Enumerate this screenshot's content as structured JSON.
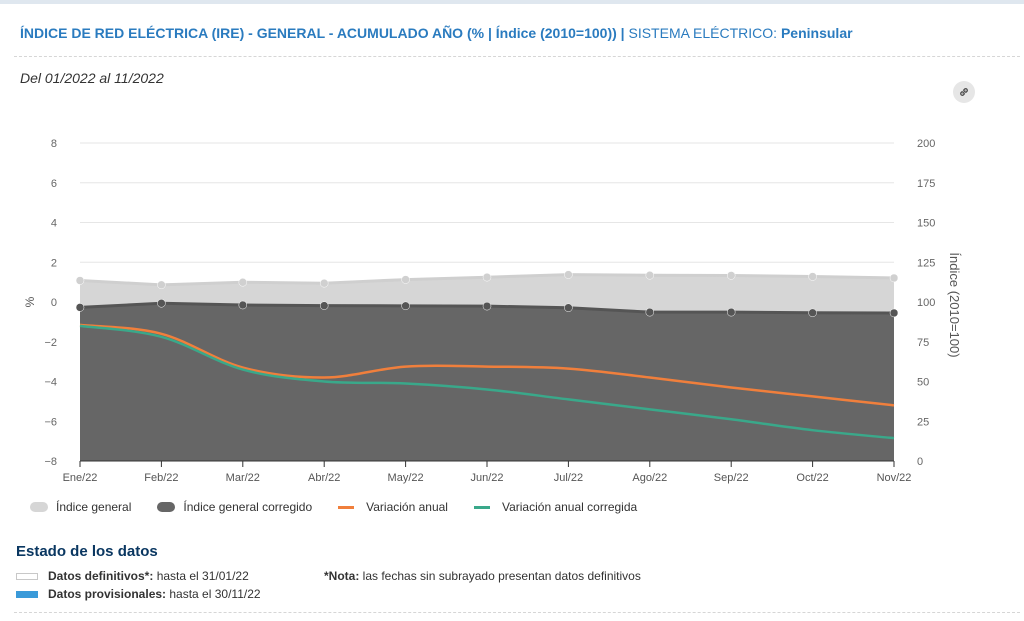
{
  "header": {
    "title": "ÍNDICE DE RED ELÉCTRICA (IRE) - GENERAL - ACUMULADO AÑO (% | Índice (2010=100))",
    "separator": " | ",
    "system_label": "SISTEMA ELÉCTRICO: ",
    "system_value": "Peninsular",
    "date_range": "Del 01/2022 al 11/2022",
    "link_icon": "link-icon"
  },
  "chart_data": {
    "type": "area",
    "categories": [
      "Ene/22",
      "Feb/22",
      "Mar/22",
      "Abr/22",
      "May/22",
      "Jun/22",
      "Jul/22",
      "Ago/22",
      "Sep/22",
      "Oct/22",
      "Nov/22"
    ],
    "left_axis": {
      "label": "%",
      "range": [
        -8,
        8
      ],
      "ticks": [
        "8",
        "6",
        "4",
        "2",
        "0",
        "−2",
        "−4",
        "−6",
        "−8"
      ]
    },
    "right_axis": {
      "label": "Índice (2010=100)",
      "range": [
        0,
        200
      ],
      "ticks": [
        "200",
        "175",
        "150",
        "125",
        "100",
        "75",
        "50",
        "25",
        "0"
      ]
    },
    "grid": true,
    "legend_position": "bottom-left",
    "series": [
      {
        "name": "Índice general",
        "kind": "area",
        "axis": "right",
        "color": "#d6d6d6",
        "values": [
          113.5,
          110.8,
          112.4,
          111.8,
          114.1,
          115.6,
          117.2,
          116.8,
          116.7,
          116.0,
          115.1
        ]
      },
      {
        "name": "Índice general corregido",
        "kind": "area",
        "axis": "right",
        "color": "#666666",
        "values": [
          96.6,
          99.2,
          98.1,
          97.7,
          97.6,
          97.4,
          96.4,
          93.6,
          93.6,
          93.2,
          93.1
        ]
      },
      {
        "name": "Variación anual",
        "kind": "line",
        "axis": "left",
        "color": "#f07f3c",
        "values": [
          -1.15,
          -1.6,
          -3.3,
          -3.8,
          -3.25,
          -3.25,
          -3.35,
          -3.8,
          -4.3,
          -4.75,
          -5.2
        ]
      },
      {
        "name": "Variación anual corregida",
        "kind": "line",
        "axis": "left",
        "color": "#3aa88a",
        "values": [
          -1.2,
          -1.75,
          -3.4,
          -4.0,
          -4.1,
          -4.4,
          -4.9,
          -5.4,
          -5.9,
          -6.45,
          -6.85
        ]
      }
    ]
  },
  "data_status": {
    "title": "Estado de los datos",
    "definitive_label": "Datos definitivos*:",
    "definitive_value": " hasta el 31/01/22",
    "provisional_label": "Datos provisionales:",
    "provisional_value": " hasta el 30/11/22",
    "note_label": "*Nota:",
    "note_text": " las fechas sin subrayado presentan datos definitivos",
    "provisional_color": "#3a9ad9"
  }
}
